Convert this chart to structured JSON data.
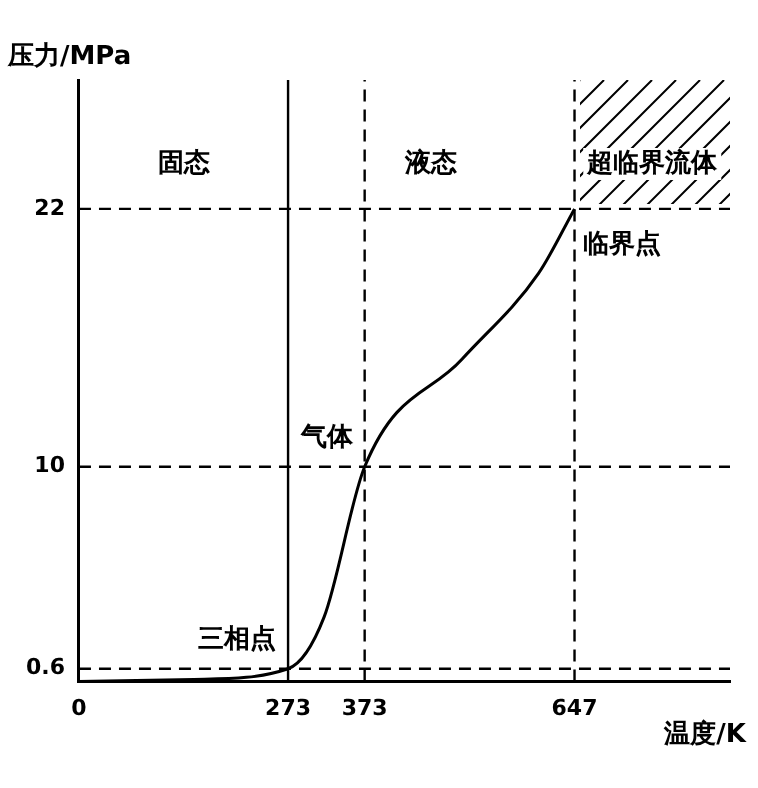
{
  "chart_data": {
    "type": "line",
    "xlabel": "温度/K",
    "ylabel": "压力/MPa",
    "x": [
      0,
      150,
      273,
      320,
      373,
      500,
      600,
      647
    ],
    "series": [
      {
        "color": "#000000",
        "values": [
          0,
          0.1,
          0.6,
          3,
          10,
          15,
          19,
          22
        ]
      }
    ],
    "xlim": [
      0,
      850
    ],
    "ylim": [
      0,
      28
    ],
    "xticks": [
      0,
      273,
      373,
      647
    ],
    "yticks": [
      0.6,
      10,
      22
    ],
    "grid": false,
    "legend": false,
    "marker": "none",
    "line_style": "solid",
    "ref_lines": [
      {
        "axis": "x",
        "value": 273,
        "line_style": "solid",
        "color": "#000000"
      },
      {
        "axis": "x",
        "value": 373,
        "line_style": "dashed",
        "color": "#000000"
      },
      {
        "axis": "x",
        "value": 647,
        "line_style": "dashed",
        "color": "#000000"
      },
      {
        "axis": "y",
        "value": 0.6,
        "line_style": "dashed",
        "color": "#000000"
      },
      {
        "axis": "y",
        "value": 10,
        "line_style": "dashed",
        "color": "#000000"
      },
      {
        "axis": "y",
        "value": 22,
        "line_style": "dashed",
        "color": "#000000"
      }
    ],
    "annotations": [
      "固态",
      "液态",
      "超临界流体",
      {
        "text": "三相点",
        "x": 273,
        "y": 0.6
      },
      {
        "text": "临界点",
        "x": 647,
        "y": 22
      },
      {
        "text": "气体",
        "x": 373,
        "y": 10
      }
    ]
  }
}
